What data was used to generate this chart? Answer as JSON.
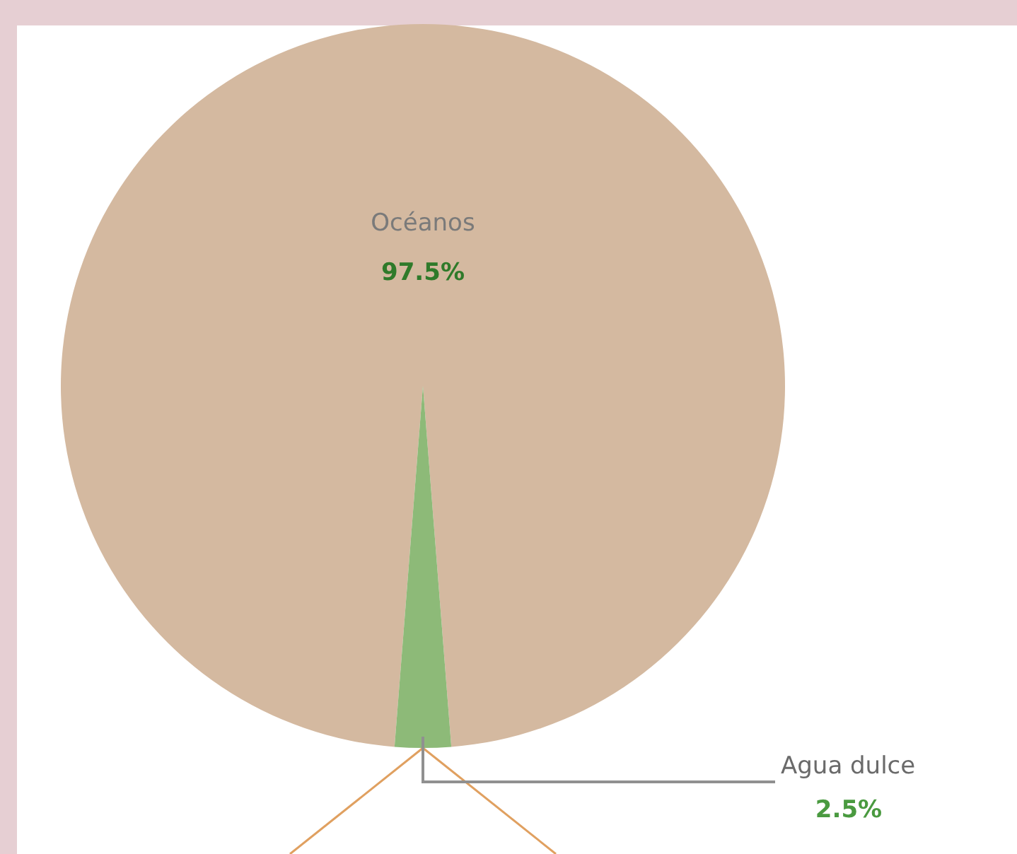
{
  "chart_data": {
    "type": "pie",
    "categories": [
      "Océanos",
      "Agua dulce"
    ],
    "values": [
      97.5,
      2.5
    ],
    "colors": [
      "#d4b9a0",
      "#8dba78"
    ],
    "value_labels": [
      "97.5%",
      "2.5%"
    ],
    "legend": false
  }
}
